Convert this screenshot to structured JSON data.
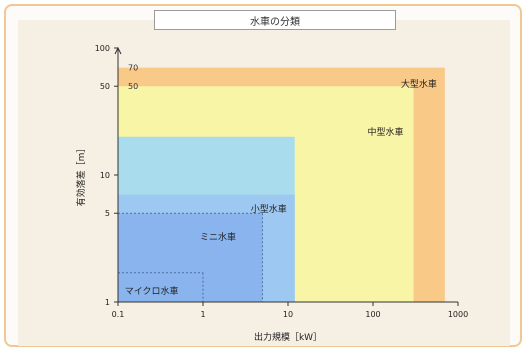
{
  "chart_data": {
    "type": "area",
    "title": "水車の分類",
    "xlabel": "出力規模［kW］",
    "ylabel": "有効落差［m］",
    "x_scale": "log",
    "y_scale": "log",
    "xlim": [
      0.1,
      1000
    ],
    "ylim": [
      1,
      100
    ],
    "x_ticks": [
      "0.1",
      "1",
      "10",
      "100",
      "1000"
    ],
    "y_ticks": [
      "100",
      "50",
      "10",
      "5",
      "1"
    ],
    "regions": [
      {
        "name": "大型水車",
        "color": "#f9c988",
        "x_max": 700,
        "y_max": 70
      },
      {
        "name": "中型水車",
        "color": "#f8f5a6",
        "x_max": 300,
        "y_max": 50
      },
      {
        "name": "",
        "color": "#a9dcec",
        "x_max": 12,
        "y_max": 20
      },
      {
        "name": "小型水車",
        "color": "#9cc8f2",
        "x_max": 12,
        "y_max": 7
      },
      {
        "name": "ミニ水車",
        "color": "#8ab4ee",
        "x_max": 5,
        "y_max": 5
      },
      {
        "name": "マイクロ水車",
        "color": "#8ab4ee",
        "x_max": 1,
        "y_max": 1.7
      }
    ],
    "annotations": [
      "70",
      "50"
    ]
  }
}
